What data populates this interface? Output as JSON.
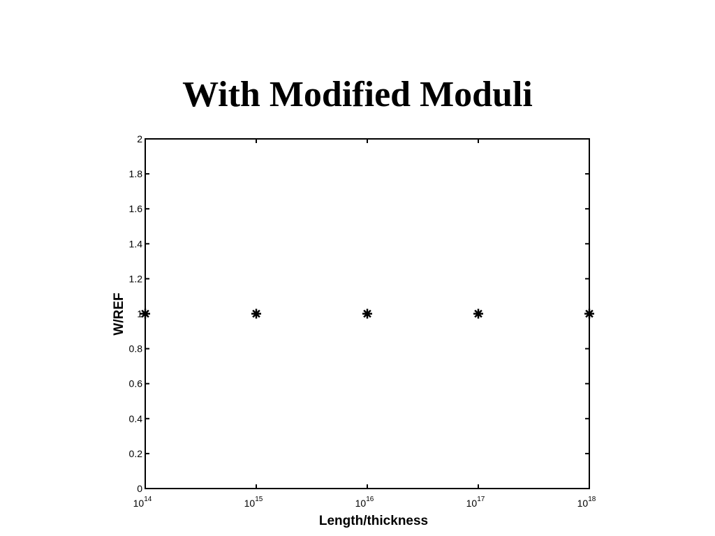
{
  "chart_data": {
    "type": "scatter",
    "title": "With Modified Moduli",
    "xlabel": "Length/thickness",
    "ylabel": "W/REF",
    "x": [
      100000000000000.0,
      1000000000000000.0,
      1e+16,
      1e+17,
      1e+18
    ],
    "values": [
      1,
      1,
      1,
      1,
      1
    ],
    "color": "#000000",
    "marker": "*",
    "xscale": "log",
    "xlim": [
      100000000000000.0,
      1e+18
    ],
    "xticks": [
      {
        "value": 100000000000000.0,
        "label": "10^14"
      },
      {
        "value": 1000000000000000.0,
        "label": "10^15"
      },
      {
        "value": 1e+16,
        "label": "10^16"
      },
      {
        "value": 1e+17,
        "label": "10^17"
      },
      {
        "value": 1e+18,
        "label": "10^18"
      }
    ],
    "ylim": [
      0,
      2
    ],
    "yticks": [
      0,
      0.2,
      0.4,
      0.6,
      0.8,
      1,
      1.2,
      1.4,
      1.6,
      1.8,
      2
    ],
    "grid": false
  }
}
